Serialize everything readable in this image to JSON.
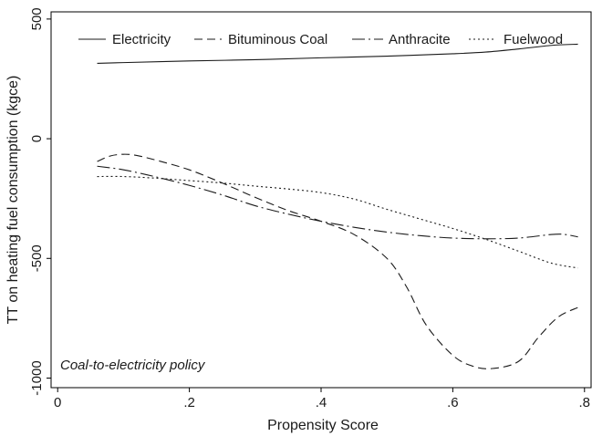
{
  "chart_data": {
    "type": "line",
    "xlabel": "Propensity Score",
    "ylabel": "TT on heating fuel consumption (kgce)",
    "xlim": [
      -0.01,
      0.81
    ],
    "ylim": [
      -1040,
      530
    ],
    "xticks": [
      {
        "value": 0,
        "label": "0"
      },
      {
        "value": 0.2,
        "label": ".2"
      },
      {
        "value": 0.4,
        "label": ".4"
      },
      {
        "value": 0.6,
        "label": ".6"
      },
      {
        "value": 0.8,
        "label": ".8"
      }
    ],
    "yticks": [
      {
        "value": 500,
        "label": "500"
      },
      {
        "value": 0,
        "label": "0"
      },
      {
        "value": -500,
        "label": "-500"
      },
      {
        "value": -1000,
        "label": "-1000"
      }
    ],
    "annotation": "Coal-to-electricity policy",
    "legend_position": "top",
    "grid": false,
    "series": [
      {
        "name": "Electricity",
        "dash": "solid",
        "x": [
          0.06,
          0.1,
          0.2,
          0.3,
          0.4,
          0.5,
          0.6,
          0.65,
          0.7,
          0.75,
          0.79
        ],
        "y": [
          315,
          318,
          325,
          330,
          338,
          345,
          355,
          362,
          375,
          390,
          395
        ]
      },
      {
        "name": "Bituminous Coal",
        "dash": "dash",
        "x": [
          0.06,
          0.08,
          0.1,
          0.12,
          0.15,
          0.2,
          0.25,
          0.3,
          0.35,
          0.4,
          0.45,
          0.5,
          0.53,
          0.56,
          0.6,
          0.63,
          0.66,
          0.7,
          0.73,
          0.76,
          0.79
        ],
        "y": [
          -95,
          -72,
          -65,
          -70,
          -90,
          -130,
          -185,
          -245,
          -300,
          -345,
          -400,
          -500,
          -620,
          -780,
          -905,
          -950,
          -960,
          -930,
          -830,
          -745,
          -705
        ]
      },
      {
        "name": "Anthracite",
        "dash": "dashdot",
        "x": [
          0.06,
          0.1,
          0.15,
          0.2,
          0.25,
          0.3,
          0.35,
          0.4,
          0.45,
          0.5,
          0.55,
          0.6,
          0.65,
          0.7,
          0.75,
          0.77,
          0.79
        ],
        "y": [
          -115,
          -130,
          -160,
          -195,
          -235,
          -280,
          -315,
          -345,
          -370,
          -390,
          -405,
          -415,
          -418,
          -415,
          -400,
          -400,
          -410
        ]
      },
      {
        "name": "Fuelwood",
        "dash": "dot",
        "x": [
          0.06,
          0.1,
          0.15,
          0.2,
          0.25,
          0.3,
          0.35,
          0.4,
          0.45,
          0.5,
          0.55,
          0.6,
          0.65,
          0.7,
          0.75,
          0.79
        ],
        "y": [
          -158,
          -158,
          -165,
          -175,
          -185,
          -198,
          -210,
          -225,
          -252,
          -295,
          -335,
          -375,
          -420,
          -470,
          -520,
          -540
        ]
      }
    ]
  }
}
